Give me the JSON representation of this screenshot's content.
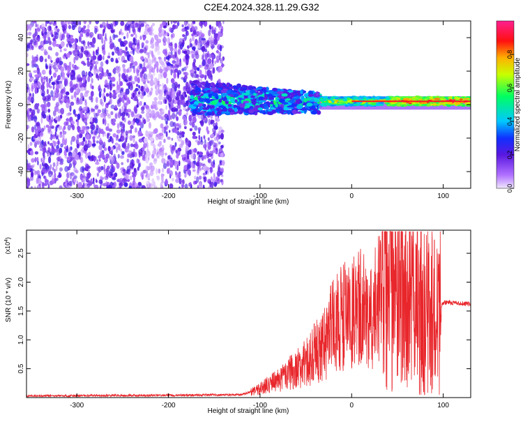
{
  "title": "C2E4.2024.328.11.29.G32",
  "colors": {
    "accent_red": "#e8262b",
    "spectro_low": "#6a1bd1",
    "spectro_mid": "#00c8ff",
    "spectro_high": "#ff1010",
    "axis": "#000000"
  },
  "chart_data": [
    {
      "type": "heatmap",
      "title": "C2E4.2024.328.11.29.G32",
      "xlabel": "Height of straight line (km)",
      "ylabel": "Frequency (Hz)",
      "xlim": [
        -355,
        130
      ],
      "ylim": [
        -50,
        50
      ],
      "xticks": [
        -300,
        -200,
        -100,
        0,
        100
      ],
      "yticks": [
        -40,
        -20,
        0,
        20,
        40
      ],
      "colorbar": {
        "label": "Normalized spectral amplitude",
        "range": [
          0.0,
          1.0
        ],
        "ticks": [
          0.0,
          0.2,
          0.4,
          0.6,
          0.8
        ],
        "colormap": "rainbow (violet-blue-cyan-green-yellow-red-magenta)"
      },
      "regions": [
        {
          "x_range": [
            -355,
            -140
          ],
          "freq_range": [
            -50,
            50
          ],
          "amplitude": "low (0.05-0.25)",
          "pattern": "broadband speckle noise"
        },
        {
          "x_range": [
            -175,
            -35
          ],
          "freq_range": [
            -10,
            12
          ],
          "amplitude": "0.2-0.6",
          "pattern": "band narrowing toward 0 Hz"
        },
        {
          "x_range": [
            -35,
            130
          ],
          "freq_range": [
            -2,
            4
          ],
          "amplitude": "0.6-1.0",
          "pattern": "strong narrow line at ~2 Hz"
        }
      ],
      "signal_center_hz": 2
    },
    {
      "type": "line",
      "xlabel": "Height of straight line (km)",
      "ylabel": "SNR (10 * v/v)",
      "y_scale_note": "(x10",
      "y_scale_exp": "4",
      "xlim": [
        -355,
        130
      ],
      "ylim": [
        0,
        2.9
      ],
      "xticks": [
        -300,
        -200,
        -100,
        0,
        100
      ],
      "yticks": [
        0.5,
        1.0,
        1.5,
        2.0,
        2.5
      ],
      "series": [
        {
          "color": "#e8262b",
          "envelope": [
            {
              "x": -355,
              "y": 0.03
            },
            {
              "x": -200,
              "y": 0.04
            },
            {
              "x": -120,
              "y": 0.05
            },
            {
              "x": -100,
              "y": 0.15
            },
            {
              "x": -75,
              "y": 0.35
            },
            {
              "x": -50,
              "y": 0.6
            },
            {
              "x": -30,
              "y": 0.95
            },
            {
              "x": -15,
              "y": 1.35
            },
            {
              "x": 0,
              "y": 1.45
            },
            {
              "x": 20,
              "y": 1.6
            },
            {
              "x": 40,
              "y": 1.85
            },
            {
              "x": 60,
              "y": 1.8
            },
            {
              "x": 80,
              "y": 1.5
            },
            {
              "x": 95,
              "y": 1.5
            },
            {
              "x": 100,
              "y": 1.65
            },
            {
              "x": 130,
              "y": 1.62
            }
          ],
          "peaks": [
            {
              "x": -12,
              "y": 2.05
            },
            {
              "x": 50,
              "y": 2.3
            },
            {
              "x": 75,
              "y": 2.6
            },
            {
              "x": 83,
              "y": 2.9
            },
            {
              "x": 88,
              "y": 2.75
            }
          ]
        }
      ]
    }
  ]
}
